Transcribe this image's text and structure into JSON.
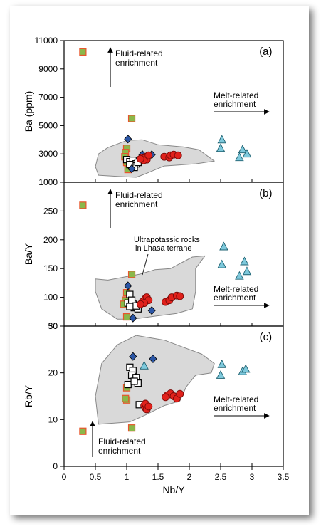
{
  "chart_data": [
    {
      "panel_label": "(a)",
      "type": "scatter",
      "ylabel": "Ba (ppm)",
      "xlabel": "",
      "xlim": [
        0,
        3.5
      ],
      "ylim": [
        1000,
        11000
      ],
      "yticks": [
        1000,
        3000,
        5000,
        7000,
        9000,
        11000
      ],
      "ytick_labels": [
        "1000",
        "3000",
        "5000",
        "7000",
        "9000",
        "11000"
      ],
      "region": [
        [
          0.85,
          3700
        ],
        [
          1.0,
          3950
        ],
        [
          1.25,
          4000
        ],
        [
          1.5,
          3650
        ],
        [
          1.9,
          3500
        ],
        [
          2.15,
          3300
        ],
        [
          2.4,
          2500
        ],
        [
          2.1,
          2300
        ],
        [
          1.6,
          2150
        ],
        [
          1.3,
          1600
        ],
        [
          1.15,
          1350
        ],
        [
          0.9,
          1400
        ],
        [
          0.55,
          1500
        ],
        [
          0.5,
          2100
        ],
        [
          0.55,
          3000
        ],
        [
          0.7,
          3450
        ]
      ],
      "series": [
        {
          "marker": "square-green",
          "color": "#8ab84a",
          "stroke": "#e8552c",
          "points": [
            [
              0.3,
              10200
            ],
            [
              1.08,
              5500
            ],
            [
              1.0,
              3400
            ],
            [
              0.98,
              3100
            ],
            [
              0.97,
              2800
            ],
            [
              1.0,
              2400
            ],
            [
              1.02,
              1900
            ]
          ]
        },
        {
          "marker": "square-open",
          "color": "#ffffff",
          "stroke": "#000000",
          "points": [
            [
              1.0,
              2600
            ],
            [
              1.05,
              2450
            ],
            [
              1.1,
              2550
            ],
            [
              1.15,
              2300
            ],
            [
              1.08,
              2150
            ],
            [
              1.12,
              2050
            ],
            [
              1.05,
              2250
            ],
            [
              1.18,
              2400
            ]
          ]
        },
        {
          "marker": "diamond",
          "color": "#2b56a6",
          "stroke": "#000000",
          "points": [
            [
              1.02,
              4050
            ],
            [
              1.4,
              2950
            ],
            [
              1.25,
              2950
            ],
            [
              1.08,
              1950
            ]
          ]
        },
        {
          "marker": "circle",
          "color": "#e0211b",
          "stroke": "#7a0a08",
          "points": [
            [
              1.25,
              2750
            ],
            [
              1.3,
              2800
            ],
            [
              1.32,
              2600
            ],
            [
              1.28,
              2700
            ],
            [
              1.35,
              2900
            ],
            [
              1.27,
              2550
            ],
            [
              1.6,
              2800
            ],
            [
              1.68,
              2750
            ],
            [
              1.7,
              2900
            ],
            [
              1.75,
              2950
            ],
            [
              1.82,
              2900
            ],
            [
              1.22,
              2650
            ]
          ]
        },
        {
          "marker": "triangle",
          "color": "#7ec9dc",
          "stroke": "#1e6070",
          "points": [
            [
              2.52,
              4000
            ],
            [
              2.5,
              3400
            ],
            [
              2.85,
              3300
            ],
            [
              2.92,
              3000
            ],
            [
              2.8,
              2750
            ]
          ]
        }
      ],
      "annotations": [
        {
          "text_lines": [
            "Fluid-related",
            "enrichment"
          ],
          "arrow": "up",
          "at": [
            0.8,
            9800
          ]
        },
        {
          "text_lines": [
            "Melt-related",
            "enrichment"
          ],
          "arrow": "right",
          "at": [
            2.45,
            6500
          ]
        }
      ]
    },
    {
      "panel_label": "(b)",
      "type": "scatter",
      "ylabel": "Ba/Y",
      "xlabel": "",
      "xlim": [
        0,
        3.5
      ],
      "ylim": [
        50,
        300
      ],
      "yticks": [
        50,
        100,
        150,
        200,
        250
      ],
      "ytick_labels": [
        "50",
        "100",
        "150",
        "200",
        "250"
      ],
      "region": [
        [
          0.5,
          132
        ],
        [
          0.7,
          130
        ],
        [
          0.95,
          135
        ],
        [
          1.2,
          140
        ],
        [
          1.45,
          148
        ],
        [
          1.7,
          150
        ],
        [
          2.05,
          170
        ],
        [
          2.25,
          172
        ],
        [
          2.1,
          150
        ],
        [
          2.1,
          110
        ],
        [
          2.05,
          80
        ],
        [
          1.8,
          72
        ],
        [
          1.5,
          68
        ],
        [
          1.1,
          62
        ],
        [
          0.85,
          62
        ],
        [
          0.6,
          80
        ],
        [
          0.5,
          110
        ]
      ],
      "series": [
        {
          "marker": "square-green",
          "color": "#8ab84a",
          "stroke": "#e8552c",
          "points": [
            [
              0.3,
              260
            ],
            [
              1.08,
              140
            ],
            [
              1.0,
              108
            ],
            [
              0.98,
              95
            ],
            [
              0.95,
              88
            ],
            [
              1.0,
              66
            ]
          ]
        },
        {
          "marker": "square-open",
          "color": "#ffffff",
          "stroke": "#000000",
          "points": [
            [
              1.05,
              105
            ],
            [
              1.02,
              90
            ],
            [
              1.1,
              88
            ],
            [
              1.12,
              82
            ],
            [
              1.18,
              80
            ],
            [
              1.08,
              95
            ],
            [
              1.15,
              85
            ],
            [
              1.05,
              84
            ]
          ]
        },
        {
          "marker": "diamond",
          "color": "#2b56a6",
          "stroke": "#000000",
          "points": [
            [
              1.02,
              120
            ],
            [
              1.1,
              64
            ],
            [
              1.4,
              77
            ]
          ]
        },
        {
          "marker": "circle",
          "color": "#e0211b",
          "stroke": "#7a0a08",
          "points": [
            [
              1.25,
              92
            ],
            [
              1.3,
              98
            ],
            [
              1.32,
              100
            ],
            [
              1.35,
              95
            ],
            [
              1.28,
              90
            ],
            [
              1.22,
              88
            ],
            [
              1.62,
              92
            ],
            [
              1.68,
              95
            ],
            [
              1.72,
              100
            ],
            [
              1.8,
              103
            ],
            [
              1.85,
              102
            ]
          ]
        },
        {
          "marker": "triangle",
          "color": "#7ec9dc",
          "stroke": "#1e6070",
          "points": [
            [
              2.55,
              188
            ],
            [
              2.52,
              157
            ],
            [
              2.88,
              162
            ],
            [
              2.92,
              145
            ],
            [
              2.8,
              137
            ]
          ]
        }
      ],
      "annotations": [
        {
          "text_lines": [
            "Fluid-related",
            "enrichment"
          ],
          "arrow": "up",
          "at": [
            0.8,
            240
          ]
        },
        {
          "text_lines": [
            "Ultrapotassic rocks",
            "in Lhasa terrane"
          ],
          "arrow": "leader",
          "at": [
            1.3,
            175
          ]
        },
        {
          "text_lines": [
            "Melt-related",
            "enrichment"
          ],
          "arrow": "right",
          "at": [
            2.45,
            105
          ]
        }
      ]
    },
    {
      "panel_label": "(c)",
      "type": "scatter",
      "ylabel": "Rb/Y",
      "xlabel": "Nb/Y",
      "xlim": [
        0,
        3.5
      ],
      "ylim": [
        0,
        30
      ],
      "yticks": [
        0,
        10,
        20,
        30
      ],
      "ytick_labels": [
        "0",
        "10",
        "20",
        "30"
      ],
      "xticks": [
        0,
        0.5,
        1,
        1.5,
        2,
        2.5,
        3,
        3.5
      ],
      "xtick_labels": [
        "0",
        "0.5",
        "1",
        "1.5",
        "2",
        "2.5",
        "3",
        "3.5"
      ],
      "region": [
        [
          0.6,
          22
        ],
        [
          0.85,
          26
        ],
        [
          1.15,
          28
        ],
        [
          1.6,
          27
        ],
        [
          2.2,
          24
        ],
        [
          2.4,
          22
        ],
        [
          2.35,
          20
        ],
        [
          2.1,
          19.5
        ],
        [
          1.95,
          17
        ],
        [
          1.85,
          14
        ],
        [
          1.6,
          13
        ],
        [
          1.45,
          12
        ],
        [
          1.3,
          11
        ],
        [
          1.05,
          9.5
        ],
        [
          0.55,
          9
        ],
        [
          0.5,
          15
        ]
      ],
      "series": [
        {
          "marker": "square-green",
          "color": "#8ab84a",
          "stroke": "#e8552c",
          "points": [
            [
              0.3,
              7.5
            ],
            [
              1.08,
              8.2
            ],
            [
              1.0,
              16.8
            ],
            [
              1.0,
              14.2
            ],
            [
              0.98,
              14.5
            ]
          ]
        },
        {
          "marker": "square-open",
          "color": "#ffffff",
          "stroke": "#000000",
          "points": [
            [
              1.05,
              21.2
            ],
            [
              1.1,
              20.5
            ],
            [
              1.08,
              19.5
            ],
            [
              1.15,
              19.0
            ],
            [
              1.02,
              17.5
            ],
            [
              1.18,
              17.8
            ],
            [
              1.2,
              13.2
            ],
            [
              1.12,
              18.2
            ]
          ]
        },
        {
          "marker": "diamond",
          "color": "#2b56a6",
          "stroke": "#000000",
          "points": [
            [
              1.1,
              23.5
            ],
            [
              1.42,
              23.0
            ]
          ]
        },
        {
          "marker": "circle",
          "color": "#e0211b",
          "stroke": "#7a0a08",
          "points": [
            [
              1.28,
              13.0
            ],
            [
              1.3,
              12.5
            ],
            [
              1.32,
              12.2
            ],
            [
              1.3,
              13.4
            ],
            [
              1.35,
              12.8
            ],
            [
              1.65,
              15.2
            ],
            [
              1.7,
              15.6
            ],
            [
              1.75,
              15.0
            ],
            [
              1.8,
              14.5
            ],
            [
              1.85,
              15.5
            ],
            [
              1.62,
              14.8
            ]
          ]
        },
        {
          "marker": "triangle",
          "color": "#7ec9dc",
          "stroke": "#1e6070",
          "points": [
            [
              1.28,
              21.5
            ],
            [
              2.52,
              21.8
            ],
            [
              2.5,
              19.5
            ],
            [
              2.85,
              20.3
            ],
            [
              2.9,
              20.8
            ]
          ]
        }
      ],
      "annotations": [
        {
          "text_lines": [
            "Fluid-related",
            "enrichment"
          ],
          "arrow": "up",
          "at": [
            0.8,
            8
          ]
        },
        {
          "text_lines": [
            "Melt-related",
            "enrichment"
          ],
          "arrow": "right",
          "at": [
            2.45,
            15
          ]
        }
      ]
    }
  ],
  "colors": {
    "frame": "#000000",
    "region_fill": "#d9d9d9",
    "region_stroke": "#888888"
  }
}
